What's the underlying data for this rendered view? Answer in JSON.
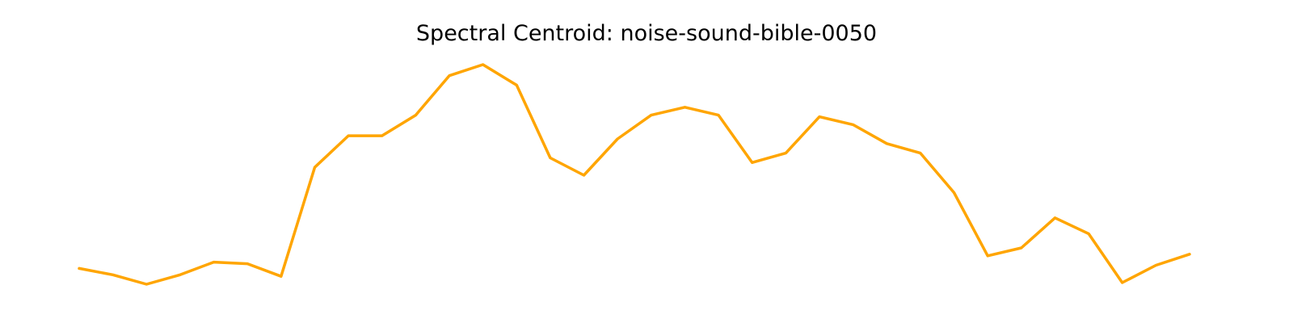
{
  "chart_data": {
    "type": "line",
    "title": "Spectral Centroid: noise-sound-bible-0050",
    "xlabel": "",
    "ylabel": "",
    "axes_visible": false,
    "grid": false,
    "legend": "none",
    "series": [
      {
        "color": "#FFA500",
        "values": [
          0.16,
          0.12,
          0.06,
          0.12,
          0.2,
          0.19,
          0.11,
          0.8,
          1.0,
          1.0,
          1.13,
          1.38,
          1.45,
          1.32,
          0.86,
          0.75,
          0.98,
          1.13,
          1.18,
          1.13,
          0.83,
          0.89,
          1.12,
          1.07,
          0.95,
          0.89,
          0.64,
          0.24,
          0.29,
          0.48,
          0.38,
          0.07,
          0.18,
          0.25
        ]
      }
    ]
  }
}
